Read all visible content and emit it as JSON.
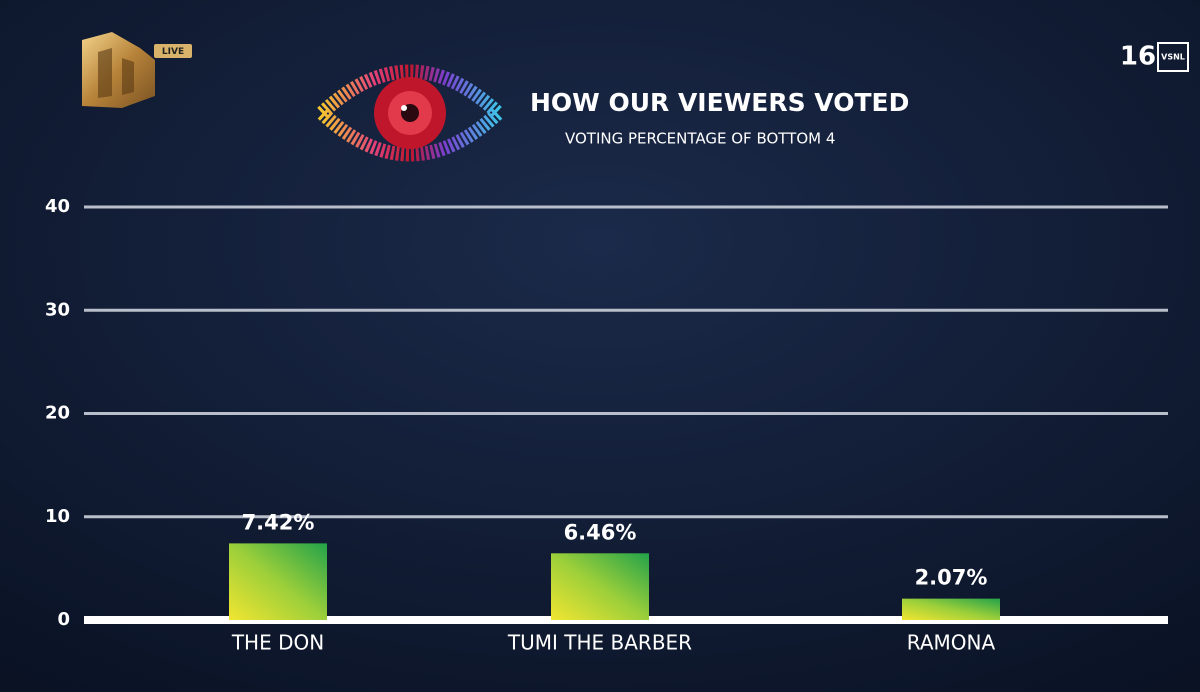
{
  "broadcast": {
    "channel_badge": "LIVE",
    "age_rating": "16",
    "rating_letters": "VSNL"
  },
  "chart_data": {
    "type": "bar",
    "title": "HOW OUR VIEWERS VOTED",
    "subtitle": "VOTING PERCENTAGE OF BOTTOM 4",
    "categories": [
      "THE DON",
      "TUMI THE BARBER",
      "RAMONA"
    ],
    "values": [
      7.42,
      6.46,
      2.07
    ],
    "value_labels": [
      "7.42%",
      "6.46%",
      "2.07%"
    ],
    "ylim": [
      0,
      40
    ],
    "yticks": [
      0,
      10,
      20,
      30,
      40
    ],
    "grid": true
  }
}
